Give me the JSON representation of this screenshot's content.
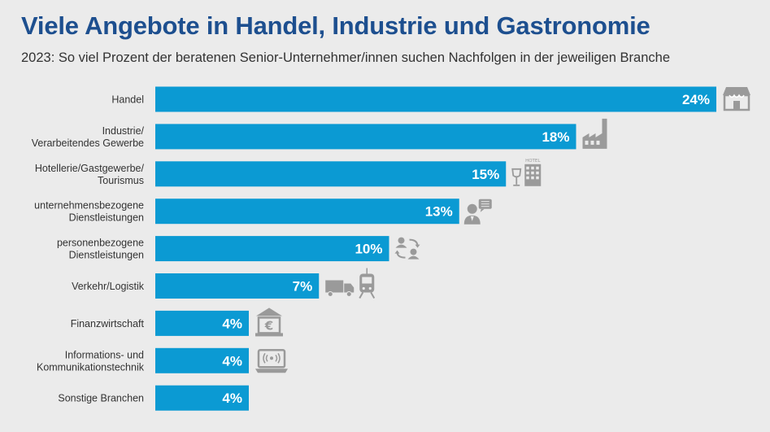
{
  "header": {
    "title": "Viele Angebote in Handel, Industrie und Gastronomie",
    "subtitle": "2023: So viel Prozent der beratenen Senior-Unternehmer/innen suchen Nachfolgen in der jeweiligen Branche"
  },
  "colors": {
    "background": "#ebebeb",
    "bar": "#0b9ad3",
    "title": "#1d4f8f",
    "icon": "#9a9a9a"
  },
  "chart_data": {
    "type": "bar",
    "orientation": "horizontal",
    "title": "Viele Angebote in Handel, Industrie und Gastronomie",
    "subtitle": "2023: So viel Prozent der beratenen Senior-Unternehmer/innen suchen Nachfolgen in der jeweiligen Branche",
    "unit": "%",
    "xlim": [
      0,
      24
    ],
    "categories": [
      {
        "lines": [
          "Handel"
        ],
        "value": 24,
        "label": "24%",
        "icon": "shop-icon"
      },
      {
        "lines": [
          "Industrie/",
          "Verarbeitendes Gewerbe"
        ],
        "value": 18,
        "label": "18%",
        "icon": "factory-icon"
      },
      {
        "lines": [
          "Hotellerie/Gastgewerbe/",
          "Tourismus"
        ],
        "value": 15,
        "label": "15%",
        "icon": "hotel-icon",
        "icon_text": "HOTEL"
      },
      {
        "lines": [
          "unternehmensbezogene",
          "Dienstleistungen"
        ],
        "value": 13,
        "label": "13%",
        "icon": "consultant-icon"
      },
      {
        "lines": [
          "personenbezogene",
          "Dienstleistungen"
        ],
        "value": 10,
        "label": "10%",
        "icon": "people-exchange-icon"
      },
      {
        "lines": [
          "Verkehr/Logistik"
        ],
        "value": 7,
        "label": "7%",
        "icon": "truck-train-icon"
      },
      {
        "lines": [
          "Finanzwirtschaft"
        ],
        "value": 4,
        "label": "4%",
        "icon": "bank-icon",
        "icon_text": "€"
      },
      {
        "lines": [
          "Informations- und",
          "Kommunikationstechnik"
        ],
        "value": 4,
        "label": "4%",
        "icon": "laptop-wifi-icon"
      },
      {
        "lines": [
          "Sonstige Branchen"
        ],
        "value": 4,
        "label": "4%",
        "icon": ""
      }
    ]
  }
}
